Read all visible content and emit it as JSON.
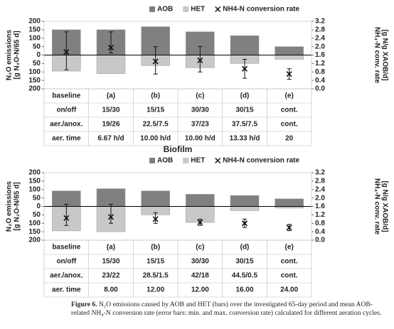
{
  "chart_data": [
    {
      "type": "bar",
      "categories": [
        "baseline",
        "(a)",
        "(b)",
        "(c)",
        "(d)",
        "(e)"
      ],
      "series": [
        {
          "name": "AOB",
          "color": "#808080",
          "values": [
            150,
            150,
            168,
            138,
            115,
            50
          ]
        },
        {
          "name": "HET",
          "color": "#c8c8c8",
          "values": [
            -95,
            -110,
            -62,
            -75,
            -50,
            -25
          ]
        },
        {
          "name": "NH4-N conversion rate",
          "color": "#111111",
          "axis": "y2",
          "values": [
            1.75,
            1.95,
            1.3,
            1.35,
            0.95,
            0.7
          ],
          "min": [
            0.9,
            1.7,
            0.7,
            0.8,
            0.5,
            0.45
          ],
          "max": [
            2.7,
            2.7,
            2.0,
            2.0,
            1.4,
            0.95
          ]
        }
      ],
      "ylabel": [
        "N₂O emissions",
        "[g N₂O-N/65 d]"
      ],
      "y2label": [
        "NH₄-N conv. rate",
        "[g N/g XAOB/d]"
      ],
      "ylim": [
        -200,
        200
      ],
      "yticks": [
        200,
        150,
        100,
        50,
        0,
        {
          "value": -50,
          "label": "50"
        },
        {
          "value": -100,
          "label": "100"
        },
        {
          "value": -150,
          "label": "150"
        },
        {
          "value": -200,
          "label": "200"
        }
      ],
      "y2lim": [
        0,
        3.2
      ],
      "y2ticks": [
        3.2,
        2.8,
        2.4,
        {
          "value": 2,
          "label": "2.0"
        },
        1.6,
        1.2,
        0.8,
        0.4,
        {
          "value": 0,
          "label": "0.0"
        }
      ],
      "table": {
        "rows": [
          [
            "on/off",
            "15/30",
            "15/15",
            "30/30",
            "30/15",
            "cont."
          ],
          [
            "aer./anox.",
            "19/26",
            "22.5/7.5",
            "37/23",
            "37.5/7.5",
            "cont."
          ],
          [
            "aer. time",
            "6.67 h/d",
            "10.00 h/d",
            "10.00 h/d",
            "13.33 h/d",
            "20"
          ]
        ]
      }
    },
    {
      "type": "bar",
      "title": "Biofilm",
      "categories": [
        "baseline",
        "(a)",
        "(b)",
        "(c)",
        "(d)",
        "(e)"
      ],
      "series": [
        {
          "name": "AOB",
          "color": "#808080",
          "values": [
            92,
            105,
            92,
            72,
            65,
            45
          ]
        },
        {
          "name": "HET",
          "color": "#c8c8c8",
          "values": [
            -145,
            -150,
            -50,
            -95,
            -25,
            -10
          ]
        },
        {
          "name": "NH4-N conversion rate",
          "color": "#111111",
          "axis": "y2",
          "values": [
            1.05,
            1.1,
            1.0,
            0.85,
            0.8,
            0.6
          ],
          "min": [
            0.7,
            0.8,
            0.8,
            0.7,
            0.6,
            0.45
          ],
          "max": [
            1.7,
            1.7,
            1.3,
            1.0,
            1.0,
            0.75
          ]
        }
      ],
      "ylabel": [
        "N₂O emissions",
        "[g N₂O-N/65 d]"
      ],
      "y2label": [
        "NH₄-N conv. rate",
        "[g N/g XAOB/d]"
      ],
      "ylim": [
        -200,
        200
      ],
      "yticks": [
        200,
        150,
        100,
        50,
        0,
        {
          "value": -50,
          "label": "50"
        },
        {
          "value": -100,
          "label": "100"
        },
        {
          "value": -150,
          "label": "150"
        },
        {
          "value": -200,
          "label": "200"
        }
      ],
      "y2lim": [
        0,
        3.2
      ],
      "y2ticks": [
        3.2,
        2.8,
        2.4,
        {
          "value": 2,
          "label": "2.0"
        },
        1.6,
        1.2,
        0.8,
        0.4,
        {
          "value": 0,
          "label": "0.0"
        }
      ],
      "table": {
        "rows": [
          [
            "on/off",
            "15/30",
            "15/15",
            "30/30",
            "30/15",
            "cont."
          ],
          [
            "aer./anox.",
            "23/22",
            "28.5/1.5",
            "42/18",
            "44.5/0.5",
            "cont."
          ],
          [
            "aer. time",
            "8.00",
            "12.00",
            "12.00",
            "16.00",
            "24.00"
          ]
        ]
      }
    }
  ],
  "caption": {
    "label": "Figure 6.",
    "text": "N₂O emissions caused by AOB and HET (bars) over the investigated 65-day period and mean AOB-related NH₄-N conversion rate (error bars: min. and max. conversion rate) calculated for different aeration cycles."
  }
}
